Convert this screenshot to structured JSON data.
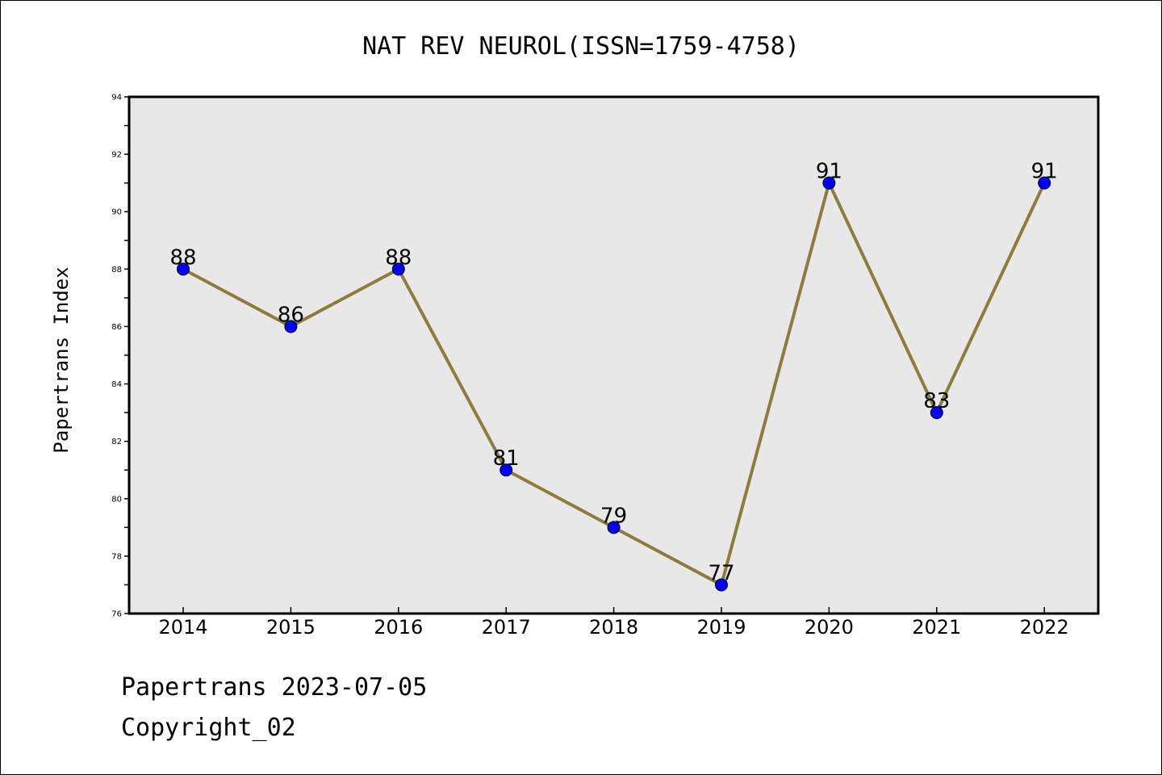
{
  "chart_data": {
    "type": "line",
    "title": "NAT REV NEUROL(ISSN=1759-4758)",
    "xlabel": "",
    "ylabel": "Papertrans Index",
    "categories": [
      "2014",
      "2015",
      "2016",
      "2017",
      "2018",
      "2019",
      "2020",
      "2021",
      "2022"
    ],
    "series": [
      {
        "values": [
          88,
          86,
          88,
          81,
          79,
          77,
          91,
          83,
          91
        ]
      }
    ],
    "ylim": [
      76,
      94
    ],
    "yticks": [
      "76",
      "78",
      "80",
      "82",
      "84",
      "86",
      "88",
      "90",
      "92",
      "94"
    ],
    "grid": false,
    "colors": {
      "line": "#8c7d3a",
      "marker": "#0000ff",
      "plot_background": "#e8e8e8"
    }
  },
  "footer": {
    "line1": "Papertrans 2023-07-05",
    "line2": "Copyright_02"
  }
}
